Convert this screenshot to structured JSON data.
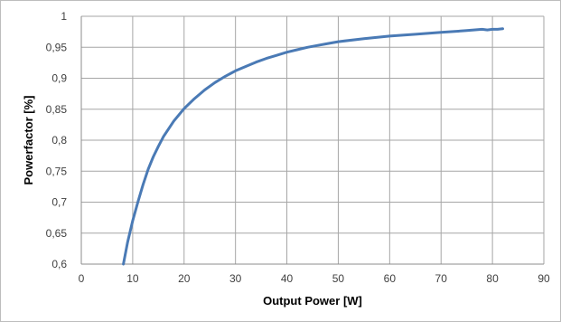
{
  "chart_data": {
    "type": "line",
    "title": "",
    "xlabel": "Output Power [W]",
    "ylabel": "Powerfactor [%]",
    "xlim": [
      0,
      90
    ],
    "ylim": [
      0.6,
      1
    ],
    "x_ticks": [
      "0",
      "10",
      "20",
      "30",
      "40",
      "50",
      "60",
      "70",
      "80",
      "90"
    ],
    "y_ticks": [
      "0,6",
      "0,65",
      "0,7",
      "0,75",
      "0,8",
      "0,85",
      "0,9",
      "0,95",
      "1"
    ],
    "grid": true,
    "legend": "none",
    "series": [
      {
        "color": "#4a7ab5",
        "x": [
          8.2,
          9,
          10,
          11,
          12,
          13,
          14,
          15,
          16,
          18,
          20,
          22,
          24,
          26,
          28,
          30,
          32,
          34,
          36,
          38,
          40,
          42,
          44,
          46,
          48,
          50,
          55,
          60,
          65,
          70,
          75,
          78,
          79,
          80,
          81,
          82
        ],
        "y": [
          0.6,
          0.635,
          0.67,
          0.7,
          0.728,
          0.753,
          0.773,
          0.79,
          0.806,
          0.831,
          0.851,
          0.867,
          0.881,
          0.893,
          0.903,
          0.912,
          0.919,
          0.926,
          0.932,
          0.937,
          0.942,
          0.946,
          0.95,
          0.953,
          0.956,
          0.959,
          0.964,
          0.968,
          0.971,
          0.974,
          0.977,
          0.979,
          0.978,
          0.979,
          0.979,
          0.98
        ]
      }
    ]
  }
}
